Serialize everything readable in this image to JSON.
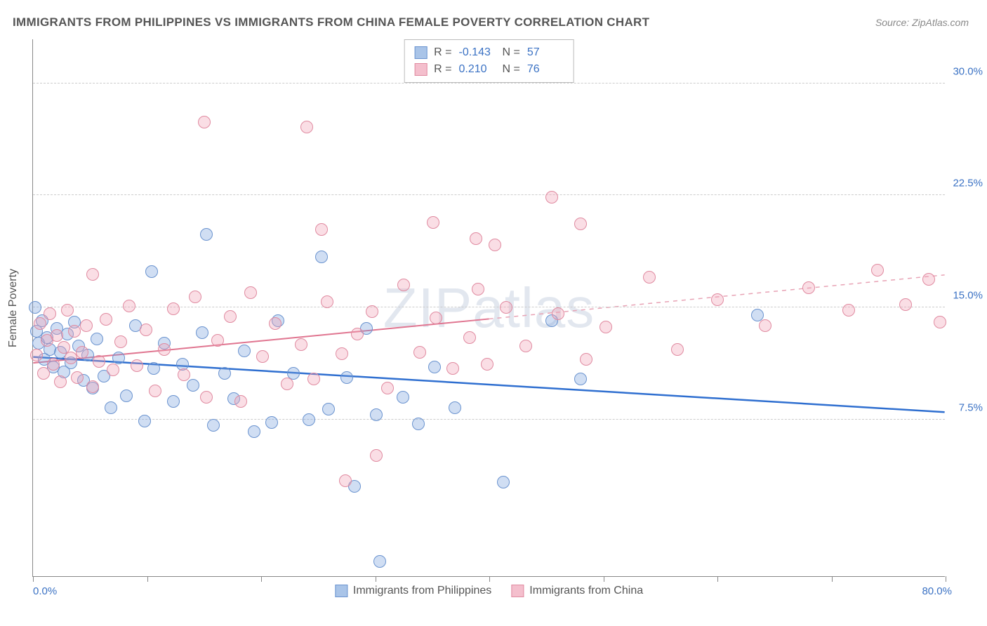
{
  "title": "IMMIGRANTS FROM PHILIPPINES VS IMMIGRANTS FROM CHINA FEMALE POVERTY CORRELATION CHART",
  "source": "Source: ZipAtlas.com",
  "watermark_a": "ZIP",
  "watermark_b": "atlas",
  "chart": {
    "type": "scatter",
    "xlim": [
      0,
      80
    ],
    "ylim": [
      -3,
      33
    ],
    "xticks": [
      0,
      10,
      20,
      30,
      40,
      50,
      60,
      70,
      80
    ],
    "yticks": [
      7.5,
      15.0,
      22.5,
      30.0
    ],
    "ytick_labels": [
      "7.5%",
      "15.0%",
      "22.5%",
      "30.0%"
    ],
    "xaxis_min_label": "0.0%",
    "xaxis_max_label": "80.0%",
    "ylabel": "Female Poverty",
    "background_color": "#ffffff",
    "grid_color": "#cccccc",
    "axis_color": "#888888",
    "marker_radius": 9,
    "marker_stroke_width": 1.5,
    "series": [
      {
        "name": "Immigrants from Philippines",
        "fill": "rgba(120,160,220,0.35)",
        "stroke": "#6a93cf",
        "swatch_fill": "#a9c4e8",
        "swatch_stroke": "#6a93cf",
        "r": "-0.143",
        "n": "57",
        "trend": {
          "x1": 0,
          "y1": 11.7,
          "x2": 80,
          "y2": 8.0,
          "color": "#2f6fd0",
          "width": 2.5,
          "dash": ""
        },
        "points": [
          [
            0.2,
            15.0
          ],
          [
            0.3,
            13.4
          ],
          [
            0.5,
            12.6
          ],
          [
            0.8,
            14.1
          ],
          [
            1.0,
            11.5
          ],
          [
            1.2,
            13.0
          ],
          [
            1.5,
            12.2
          ],
          [
            1.8,
            11.0
          ],
          [
            2.1,
            13.6
          ],
          [
            2.4,
            12.0
          ],
          [
            2.7,
            10.7
          ],
          [
            3.0,
            13.2
          ],
          [
            3.3,
            11.3
          ],
          [
            3.6,
            14.0
          ],
          [
            4.0,
            12.4
          ],
          [
            4.4,
            10.1
          ],
          [
            4.8,
            11.8
          ],
          [
            5.2,
            9.6
          ],
          [
            5.6,
            12.9
          ],
          [
            6.2,
            10.4
          ],
          [
            6.8,
            8.3
          ],
          [
            7.5,
            11.6
          ],
          [
            8.2,
            9.1
          ],
          [
            9.0,
            13.8
          ],
          [
            9.8,
            7.4
          ],
          [
            10.4,
            17.4
          ],
          [
            10.6,
            10.9
          ],
          [
            11.5,
            12.6
          ],
          [
            12.3,
            8.7
          ],
          [
            13.1,
            11.2
          ],
          [
            14.0,
            9.8
          ],
          [
            14.8,
            13.3
          ],
          [
            15.2,
            19.9
          ],
          [
            15.8,
            7.1
          ],
          [
            16.8,
            10.6
          ],
          [
            17.6,
            8.9
          ],
          [
            18.5,
            12.1
          ],
          [
            19.4,
            6.7
          ],
          [
            20.9,
            7.3
          ],
          [
            21.5,
            14.1
          ],
          [
            22.8,
            10.6
          ],
          [
            24.2,
            7.5
          ],
          [
            25.3,
            18.4
          ],
          [
            25.9,
            8.2
          ],
          [
            27.5,
            10.3
          ],
          [
            28.2,
            3.0
          ],
          [
            29.2,
            13.6
          ],
          [
            30.1,
            7.8
          ],
          [
            30.4,
            -2.0
          ],
          [
            32.4,
            9.0
          ],
          [
            33.8,
            7.2
          ],
          [
            35.2,
            11.0
          ],
          [
            37.0,
            8.3
          ],
          [
            41.2,
            3.3
          ],
          [
            45.5,
            14.1
          ],
          [
            48.0,
            10.2
          ],
          [
            63.5,
            14.5
          ]
        ]
      },
      {
        "name": "Immigrants from China",
        "fill": "rgba(240,160,180,0.35)",
        "stroke": "#e08aa0",
        "swatch_fill": "#f4bfcd",
        "swatch_stroke": "#e08aa0",
        "r": "0.210",
        "n": "76",
        "trend": {
          "x1": 0,
          "y1": 11.3,
          "x2": 80,
          "y2": 17.2,
          "color": "#e07590",
          "width": 2,
          "dash": ""
        },
        "trend_ext": {
          "x1": 40,
          "y1": 14.25,
          "x2": 80,
          "y2": 17.2,
          "color": "#e8a3b5",
          "width": 1.5,
          "dash": "6,6"
        },
        "points": [
          [
            0.3,
            11.8
          ],
          [
            0.6,
            13.9
          ],
          [
            0.9,
            10.6
          ],
          [
            1.2,
            12.8
          ],
          [
            1.5,
            14.6
          ],
          [
            1.8,
            11.2
          ],
          [
            2.1,
            13.1
          ],
          [
            2.4,
            10.0
          ],
          [
            2.7,
            12.3
          ],
          [
            3.0,
            14.8
          ],
          [
            3.3,
            11.6
          ],
          [
            3.6,
            13.4
          ],
          [
            3.9,
            10.3
          ],
          [
            4.3,
            12.0
          ],
          [
            4.7,
            13.8
          ],
          [
            5.2,
            9.7
          ],
          [
            5.2,
            17.2
          ],
          [
            5.8,
            11.4
          ],
          [
            6.4,
            14.2
          ],
          [
            7.0,
            10.8
          ],
          [
            7.7,
            12.7
          ],
          [
            8.4,
            15.1
          ],
          [
            9.1,
            11.1
          ],
          [
            9.9,
            13.5
          ],
          [
            10.7,
            9.4
          ],
          [
            11.5,
            12.2
          ],
          [
            12.3,
            14.9
          ],
          [
            13.2,
            10.5
          ],
          [
            14.2,
            15.7
          ],
          [
            15.0,
            27.4
          ],
          [
            15.2,
            9.0
          ],
          [
            16.2,
            12.8
          ],
          [
            17.3,
            14.4
          ],
          [
            18.2,
            8.7
          ],
          [
            19.1,
            16.0
          ],
          [
            20.1,
            11.7
          ],
          [
            21.2,
            13.9
          ],
          [
            22.3,
            9.9
          ],
          [
            23.5,
            12.5
          ],
          [
            24.0,
            27.1
          ],
          [
            24.6,
            10.2
          ],
          [
            25.3,
            20.2
          ],
          [
            25.8,
            15.4
          ],
          [
            27.1,
            11.9
          ],
          [
            27.4,
            3.4
          ],
          [
            28.4,
            13.2
          ],
          [
            29.7,
            14.7
          ],
          [
            30.1,
            5.1
          ],
          [
            31.1,
            9.6
          ],
          [
            32.5,
            16.5
          ],
          [
            33.9,
            12.0
          ],
          [
            35.1,
            20.7
          ],
          [
            35.3,
            14.3
          ],
          [
            36.8,
            10.9
          ],
          [
            38.3,
            13.0
          ],
          [
            38.8,
            19.6
          ],
          [
            39.0,
            16.2
          ],
          [
            39.8,
            11.2
          ],
          [
            40.5,
            19.2
          ],
          [
            41.5,
            15.0
          ],
          [
            43.2,
            12.4
          ],
          [
            45.5,
            22.4
          ],
          [
            46.0,
            14.6
          ],
          [
            48.0,
            20.6
          ],
          [
            48.5,
            11.5
          ],
          [
            50.2,
            13.7
          ],
          [
            54.0,
            17.0
          ],
          [
            56.5,
            12.2
          ],
          [
            60.0,
            15.5
          ],
          [
            64.2,
            13.8
          ],
          [
            68.0,
            16.3
          ],
          [
            71.5,
            14.8
          ],
          [
            74.0,
            17.5
          ],
          [
            76.5,
            15.2
          ],
          [
            78.5,
            16.9
          ],
          [
            79.5,
            14.0
          ]
        ]
      }
    ],
    "bottom_legend": [
      {
        "label": "Immigrants from Philippines",
        "swatch_fill": "#a9c4e8",
        "swatch_stroke": "#6a93cf"
      },
      {
        "label": "Immigrants from China",
        "swatch_fill": "#f4bfcd",
        "swatch_stroke": "#e08aa0"
      }
    ]
  }
}
